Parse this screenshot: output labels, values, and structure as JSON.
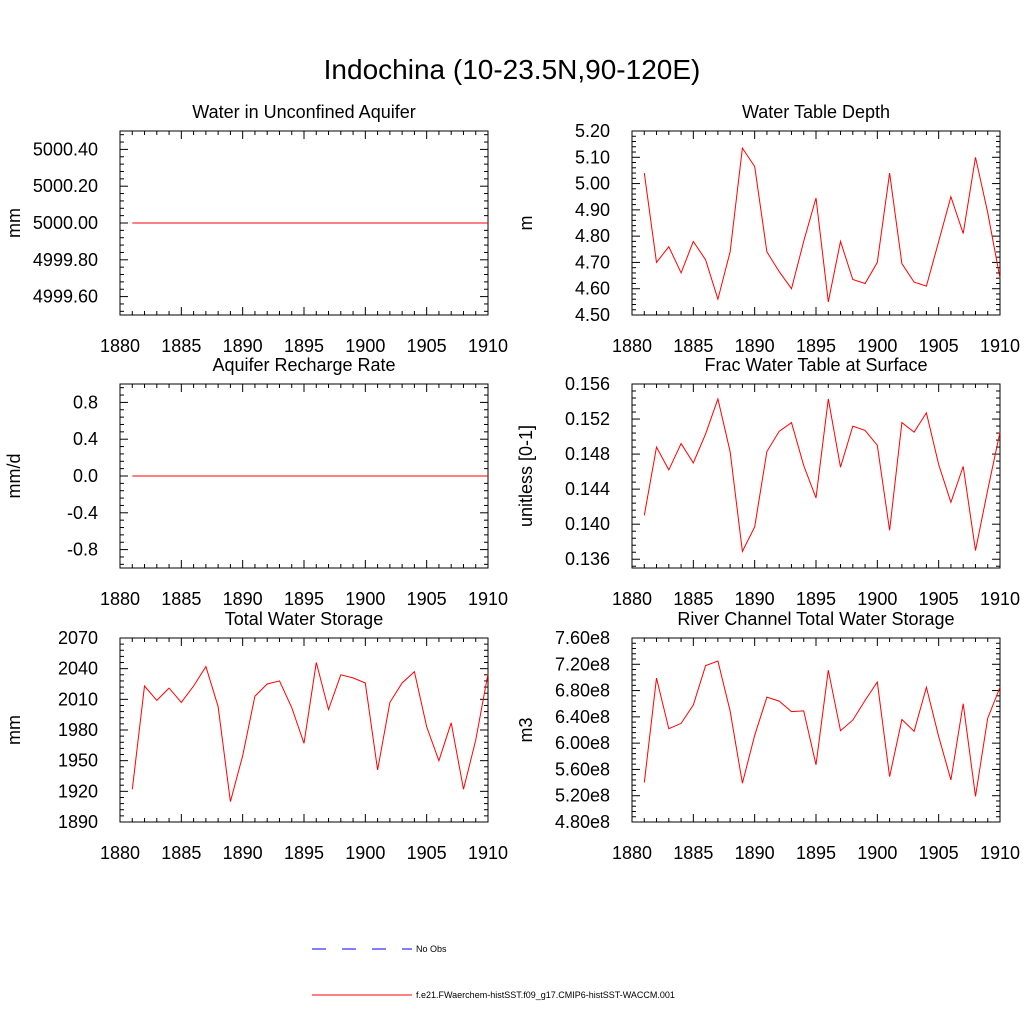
{
  "title": "Indochina (10-23.5N,90-120E)",
  "colors": {
    "model": "#ff0000",
    "obs": "#0000ff",
    "axis": "#000000"
  },
  "legend": {
    "obs_label": "No Obs",
    "model_label": "f.e21.FWaerchem-histSST.f09_g17.CMIP6-histSST-WACCM.001"
  },
  "chart_data": [
    {
      "type": "line",
      "title": "Water in Unconfined Aquifer",
      "ylabel": "mm",
      "xlim": [
        1880,
        1910
      ],
      "ylim": [
        4999.5,
        5000.5
      ],
      "xticks": [
        1880,
        1885,
        1890,
        1895,
        1900,
        1905,
        1910
      ],
      "yticks": [
        4999.6,
        4999.8,
        5000.0,
        5000.2,
        5000.4
      ],
      "ytick_labels": [
        "4999.60",
        "4999.80",
        "5000.00",
        "5000.20",
        "5000.40"
      ],
      "series": [
        {
          "x": [
            1881,
            1882,
            1883,
            1884,
            1885,
            1886,
            1887,
            1888,
            1889,
            1890,
            1891,
            1892,
            1893,
            1894,
            1895,
            1896,
            1897,
            1898,
            1899,
            1900,
            1901,
            1902,
            1903,
            1904,
            1905,
            1906,
            1907,
            1908,
            1909,
            1910
          ],
          "y": [
            5000,
            5000,
            5000,
            5000,
            5000,
            5000,
            5000,
            5000,
            5000,
            5000,
            5000,
            5000,
            5000,
            5000,
            5000,
            5000,
            5000,
            5000,
            5000,
            5000,
            5000,
            5000,
            5000,
            5000,
            5000,
            5000,
            5000,
            5000,
            5000,
            5000
          ]
        }
      ]
    },
    {
      "type": "line",
      "title": "Water Table Depth",
      "ylabel": "m",
      "xlim": [
        1880,
        1910
      ],
      "ylim": [
        4.5,
        5.2
      ],
      "xticks": [
        1880,
        1885,
        1890,
        1895,
        1900,
        1905,
        1910
      ],
      "yticks": [
        4.5,
        4.6,
        4.7,
        4.8,
        4.9,
        5.0,
        5.1,
        5.2
      ],
      "ytick_labels": [
        "4.50",
        "4.60",
        "4.70",
        "4.80",
        "4.90",
        "5.00",
        "5.10",
        "5.20"
      ],
      "series": [
        {
          "x": [
            1881,
            1882,
            1883,
            1884,
            1885,
            1886,
            1887,
            1888,
            1889,
            1890,
            1891,
            1892,
            1893,
            1894,
            1895,
            1896,
            1897,
            1898,
            1899,
            1900,
            1901,
            1902,
            1903,
            1904,
            1905,
            1906,
            1907,
            1908,
            1909,
            1910
          ],
          "y": [
            5.04,
            4.7,
            4.76,
            4.66,
            4.78,
            4.71,
            4.56,
            4.74,
            5.135,
            5.065,
            4.74,
            4.665,
            4.6,
            4.78,
            4.945,
            4.55,
            4.78,
            4.635,
            4.62,
            4.7,
            5.04,
            4.695,
            4.625,
            4.61,
            4.78,
            4.95,
            4.81,
            5.1,
            4.89,
            4.64
          ]
        }
      ]
    },
    {
      "type": "line",
      "title": "Aquifer Recharge Rate",
      "ylabel": "mm/d",
      "xlim": [
        1880,
        1910
      ],
      "ylim": [
        -1.0,
        1.0
      ],
      "xticks": [
        1880,
        1885,
        1890,
        1895,
        1900,
        1905,
        1910
      ],
      "yticks": [
        -0.8,
        -0.4,
        0.0,
        0.4,
        0.8
      ],
      "ytick_labels": [
        "-0.8",
        "-0.4",
        "0.0",
        "0.4",
        "0.8"
      ],
      "series": [
        {
          "x": [
            1881,
            1882,
            1883,
            1884,
            1885,
            1886,
            1887,
            1888,
            1889,
            1890,
            1891,
            1892,
            1893,
            1894,
            1895,
            1896,
            1897,
            1898,
            1899,
            1900,
            1901,
            1902,
            1903,
            1904,
            1905,
            1906,
            1907,
            1908,
            1909,
            1910
          ],
          "y": [
            0,
            0,
            0,
            0,
            0,
            0,
            0,
            0,
            0,
            0,
            0,
            0,
            0,
            0,
            0,
            0,
            0,
            0,
            0,
            0,
            0,
            0,
            0,
            0,
            0,
            0,
            0,
            0,
            0,
            0
          ]
        }
      ]
    },
    {
      "type": "line",
      "title": "Frac Water Table at Surface",
      "ylabel": "unitless [0-1]",
      "xlim": [
        1880,
        1910
      ],
      "ylim": [
        0.135,
        0.156
      ],
      "xticks": [
        1880,
        1885,
        1890,
        1895,
        1900,
        1905,
        1910
      ],
      "yticks": [
        0.136,
        0.14,
        0.144,
        0.148,
        0.152,
        0.156
      ],
      "ytick_labels": [
        "0.136",
        "0.140",
        "0.144",
        "0.148",
        "0.152",
        "0.156"
      ],
      "series": [
        {
          "x": [
            1881,
            1882,
            1883,
            1884,
            1885,
            1886,
            1887,
            1888,
            1889,
            1890,
            1891,
            1892,
            1893,
            1894,
            1895,
            1896,
            1897,
            1898,
            1899,
            1900,
            1901,
            1902,
            1903,
            1904,
            1905,
            1906,
            1907,
            1908,
            1909,
            1910
          ],
          "y": [
            0.141,
            0.1488,
            0.1462,
            0.1492,
            0.147,
            0.1503,
            0.1543,
            0.1483,
            0.1369,
            0.1397,
            0.1483,
            0.1506,
            0.1516,
            0.1467,
            0.143,
            0.1543,
            0.1465,
            0.1512,
            0.1507,
            0.149,
            0.1393,
            0.1516,
            0.1505,
            0.1527,
            0.1468,
            0.1425,
            0.1466,
            0.137,
            0.1439,
            0.1505
          ]
        }
      ]
    },
    {
      "type": "line",
      "title": "Total Water Storage",
      "ylabel": "mm",
      "xlim": [
        1880,
        1910
      ],
      "ylim": [
        1890,
        2070
      ],
      "xticks": [
        1880,
        1885,
        1890,
        1895,
        1900,
        1905,
        1910
      ],
      "yticks": [
        1890,
        1920,
        1950,
        1980,
        2010,
        2040,
        2070
      ],
      "ytick_labels": [
        "1890",
        "1920",
        "1950",
        "1980",
        "2010",
        "2040",
        "2070"
      ],
      "series": [
        {
          "x": [
            1881,
            1882,
            1883,
            1884,
            1885,
            1886,
            1887,
            1888,
            1889,
            1890,
            1891,
            1892,
            1893,
            1894,
            1895,
            1896,
            1897,
            1898,
            1899,
            1900,
            1901,
            1902,
            1903,
            1904,
            1905,
            1906,
            1907,
            1908,
            1909,
            1910
          ],
          "y": [
            1922,
            2023,
            2009,
            2021,
            2007,
            2023,
            2042,
            2003,
            1910,
            1955,
            2013,
            2025,
            2028,
            2002,
            1967,
            2046,
            2000,
            2034,
            2031,
            2026,
            1941,
            2007,
            2026,
            2037,
            1983,
            1950,
            1987,
            1922,
            1970,
            2035
          ]
        }
      ]
    },
    {
      "type": "line",
      "title": "River Channel Total Water Storage",
      "ylabel": "m3",
      "xlim": [
        1880,
        1910
      ],
      "ylim": [
        480000000,
        760000000
      ],
      "xticks": [
        1880,
        1885,
        1890,
        1895,
        1900,
        1905,
        1910
      ],
      "yticks": [
        480000000,
        520000000,
        560000000,
        600000000,
        640000000,
        680000000,
        720000000,
        760000000
      ],
      "ytick_labels": [
        "4.80e8",
        "5.20e8",
        "5.60e8",
        "6.00e8",
        "6.40e8",
        "6.80e8",
        "7.20e8",
        "7.60e8"
      ],
      "series": [
        {
          "x": [
            1881,
            1882,
            1883,
            1884,
            1885,
            1886,
            1887,
            1888,
            1889,
            1890,
            1891,
            1892,
            1893,
            1894,
            1895,
            1896,
            1897,
            1898,
            1899,
            1900,
            1901,
            1902,
            1903,
            1904,
            1905,
            1906,
            1907,
            1908,
            1909,
            1910
          ],
          "y": [
            540000000,
            699000000,
            622000000,
            630000000,
            658000000,
            718000000,
            725000000,
            649000000,
            539000000,
            612000000,
            670000000,
            664000000,
            648000000,
            649000000,
            567000000,
            711000000,
            619000000,
            635000000,
            665000000,
            693000000,
            549000000,
            636000000,
            618000000,
            685000000,
            610000000,
            544000000,
            660000000,
            519000000,
            638000000,
            685000000
          ]
        }
      ]
    }
  ]
}
